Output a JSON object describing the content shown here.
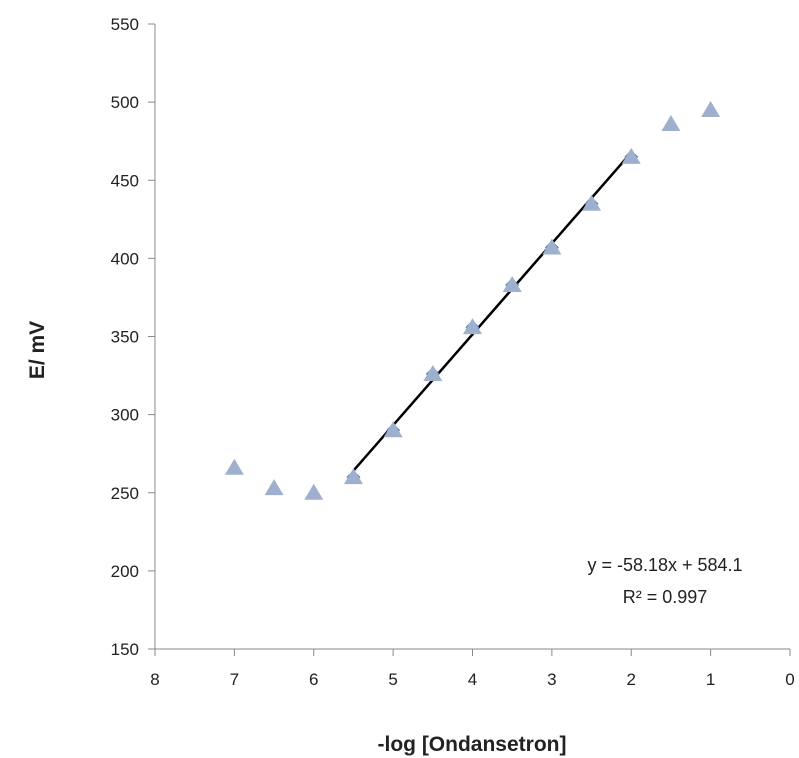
{
  "chart_data": {
    "type": "scatter",
    "xlabel": "-log [Ondansetron]",
    "ylabel": "E/ mV",
    "xlim": [
      8,
      0
    ],
    "ylim": [
      150,
      550
    ],
    "x_reversed": true,
    "xticks": [
      "8",
      "7",
      "6",
      "5",
      "4",
      "3",
      "2",
      "1",
      "0"
    ],
    "yticks": [
      "150",
      "200",
      "250",
      "300",
      "350",
      "400",
      "450",
      "500",
      "550"
    ],
    "grid": false,
    "legend": "none",
    "series": [
      {
        "marker": "triangle",
        "color": "#9fb0cf",
        "x": [
          7.0,
          6.5,
          6.0,
          5.5,
          5.0,
          4.5,
          4.0,
          3.5,
          3.0,
          2.5,
          2.0,
          1.5,
          1.0
        ],
        "y": [
          266,
          253,
          250,
          260,
          290,
          326,
          356,
          383,
          407,
          435,
          465,
          486,
          495
        ]
      },
      {
        "marker": "diamond",
        "color": "#4f7fb8",
        "x": [
          5.5,
          5.0,
          4.5,
          4.0,
          3.5,
          3.0,
          2.5,
          2.0
        ],
        "y": [
          260,
          290,
          326,
          356,
          383,
          407,
          435,
          465
        ]
      }
    ],
    "trendline": {
      "slope": -58.18,
      "intercept": 584.1,
      "x_range": [
        5.5,
        2.0
      ],
      "color": "#000000"
    },
    "annotations": [
      "y = -58.18x + 584.1",
      "R² = 0.997"
    ]
  }
}
